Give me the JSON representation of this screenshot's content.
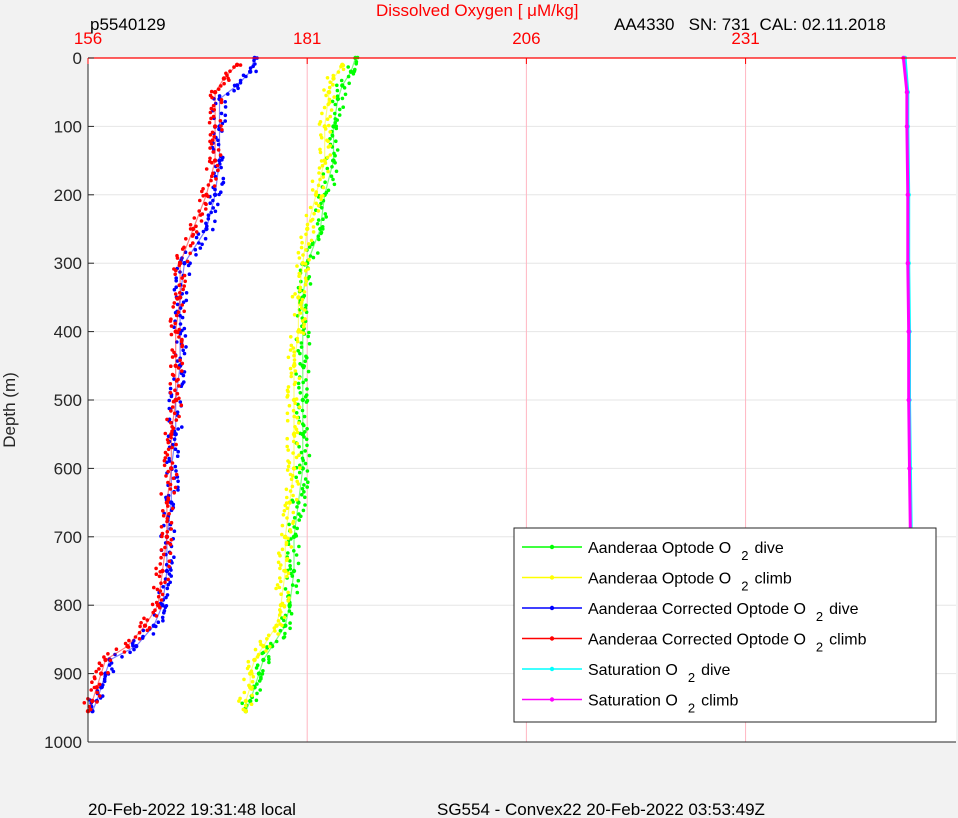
{
  "header": {
    "profile_id": "p5540129",
    "sensor_info": "AA4330   SN: 731  CAL: 02.11.2018"
  },
  "footer": {
    "local_time": "20-Feb-2022 19:31:48 local",
    "mission": "SG554 - Convex22 20-Feb-2022 03:53:49Z"
  },
  "colors": {
    "optode_dive": "#00ff00",
    "optode_climb": "#ffff00",
    "corrected_dive": "#0000ff",
    "corrected_climb": "#ff0000",
    "saturation_dive": "#00ffff",
    "saturation_climb": "#ff00ff",
    "top_axis": "#ff0000",
    "grid_vertical": "#ffb6c1",
    "grid_horizontal": "#e6e6e6"
  },
  "chart_data": {
    "type": "scatter",
    "title": "Dissolved Oxygen [ μM/kg]",
    "ylabel": "Depth (m)",
    "xlim": [
      156,
      255
    ],
    "ylim": [
      0,
      1000
    ],
    "y_reversed": true,
    "x_ticks": [
      "156",
      "181",
      "206",
      "231"
    ],
    "y_ticks": [
      "0",
      "100",
      "200",
      "300",
      "400",
      "500",
      "600",
      "700",
      "800",
      "900",
      "1000"
    ],
    "grid": true,
    "legend_position": "bottom-right",
    "series": [
      {
        "name": "Aanderaa Optode O 2 dive",
        "name_main": "Aanderaa Optode O",
        "name_sub": "2",
        "name_rest": "dive",
        "color_key": "optode_dive",
        "points": [
          [
            186.5,
            0
          ],
          [
            186,
            20
          ],
          [
            185,
            40
          ],
          [
            184.5,
            60
          ],
          [
            184,
            100
          ],
          [
            184,
            150
          ],
          [
            183,
            200
          ],
          [
            182.5,
            250
          ],
          [
            181,
            300
          ],
          [
            180.5,
            350
          ],
          [
            180.5,
            400
          ],
          [
            180.5,
            450
          ],
          [
            180.5,
            500
          ],
          [
            180.5,
            550
          ],
          [
            180.5,
            600
          ],
          [
            180,
            650
          ],
          [
            179.5,
            700
          ],
          [
            179.5,
            750
          ],
          [
            179,
            800
          ],
          [
            178.5,
            830
          ],
          [
            177,
            860
          ],
          [
            176,
            880
          ],
          [
            175.5,
            900
          ],
          [
            175,
            920
          ],
          [
            174.5,
            940
          ],
          [
            174,
            955
          ]
        ]
      },
      {
        "name": "Aanderaa Optode O 2 climb",
        "name_main": "Aanderaa Optode O",
        "name_sub": "2",
        "name_rest": "climb",
        "color_key": "optode_climb",
        "points": [
          [
            185,
            10
          ],
          [
            184,
            30
          ],
          [
            183.5,
            50
          ],
          [
            183,
            100
          ],
          [
            183,
            150
          ],
          [
            182,
            200
          ],
          [
            181,
            250
          ],
          [
            180.5,
            300
          ],
          [
            180,
            350
          ],
          [
            180,
            400
          ],
          [
            179.5,
            450
          ],
          [
            179.5,
            500
          ],
          [
            179.5,
            550
          ],
          [
            179.5,
            600
          ],
          [
            179,
            650
          ],
          [
            178.5,
            700
          ],
          [
            178.5,
            750
          ],
          [
            178,
            800
          ],
          [
            177.5,
            830
          ],
          [
            176,
            860
          ],
          [
            175,
            880
          ],
          [
            174.5,
            900
          ],
          [
            174.5,
            920
          ],
          [
            174,
            940
          ],
          [
            174,
            955
          ]
        ]
      },
      {
        "name": "Aanderaa Corrected Optode O 2 dive",
        "name_main": "Aanderaa Corrected Optode O",
        "name_sub": "2",
        "name_rest": "dive",
        "color_key": "corrected_dive",
        "points": [
          [
            175,
            0
          ],
          [
            174.5,
            20
          ],
          [
            173,
            40
          ],
          [
            171,
            60
          ],
          [
            171,
            100
          ],
          [
            171,
            150
          ],
          [
            170.5,
            200
          ],
          [
            169.5,
            250
          ],
          [
            167,
            300
          ],
          [
            166.5,
            350
          ],
          [
            166.5,
            400
          ],
          [
            166.5,
            450
          ],
          [
            166,
            500
          ],
          [
            166,
            550
          ],
          [
            165.5,
            600
          ],
          [
            165.5,
            650
          ],
          [
            165,
            700
          ],
          [
            165,
            750
          ],
          [
            164.5,
            800
          ],
          [
            163.5,
            830
          ],
          [
            161.5,
            860
          ],
          [
            158.5,
            880
          ],
          [
            158,
            900
          ],
          [
            157.5,
            920
          ],
          [
            157,
            940
          ],
          [
            156.5,
            955
          ]
        ]
      },
      {
        "name": "Aanderaa Corrected Optode O 2 climb",
        "name_main": "Aanderaa Corrected Optode O",
        "name_sub": "2",
        "name_rest": "climb",
        "color_key": "corrected_climb",
        "points": [
          [
            173,
            10
          ],
          [
            171.5,
            30
          ],
          [
            170.5,
            50
          ],
          [
            170.5,
            100
          ],
          [
            170.5,
            150
          ],
          [
            169.5,
            200
          ],
          [
            168,
            250
          ],
          [
            166.5,
            300
          ],
          [
            166.5,
            350
          ],
          [
            166,
            400
          ],
          [
            166,
            450
          ],
          [
            166,
            500
          ],
          [
            165.5,
            550
          ],
          [
            165.5,
            600
          ],
          [
            165,
            650
          ],
          [
            165,
            700
          ],
          [
            164.5,
            750
          ],
          [
            164,
            800
          ],
          [
            162.5,
            830
          ],
          [
            160.5,
            860
          ],
          [
            158,
            880
          ],
          [
            157.5,
            900
          ],
          [
            157,
            920
          ],
          [
            156.5,
            940
          ],
          [
            156,
            955
          ]
        ]
      },
      {
        "name": "Saturation O 2 dive",
        "name_main": "Saturation O",
        "name_sub": "2",
        "name_rest": "dive",
        "color_key": "saturation_dive",
        "points": [
          [
            249.2,
            0
          ],
          [
            249.5,
            50
          ],
          [
            249.5,
            100
          ],
          [
            249.6,
            200
          ],
          [
            249.6,
            300
          ],
          [
            249.7,
            400
          ],
          [
            249.7,
            500
          ],
          [
            249.8,
            600
          ],
          [
            249.9,
            700
          ],
          [
            250,
            780
          ],
          [
            250.1,
            830
          ],
          [
            250.3,
            850
          ],
          [
            250.8,
            870
          ],
          [
            251.5,
            890
          ],
          [
            251.6,
            910
          ],
          [
            252,
            930
          ],
          [
            252.3,
            955
          ]
        ]
      },
      {
        "name": "Saturation O 2 climb",
        "name_main": "Saturation O",
        "name_sub": "2",
        "name_rest": "climb",
        "color_key": "saturation_climb",
        "points": [
          [
            249,
            0
          ],
          [
            249.4,
            50
          ],
          [
            249.4,
            100
          ],
          [
            249.5,
            200
          ],
          [
            249.5,
            300
          ],
          [
            249.6,
            400
          ],
          [
            249.6,
            500
          ],
          [
            249.7,
            600
          ],
          [
            249.8,
            700
          ],
          [
            249.9,
            780
          ],
          [
            250,
            830
          ],
          [
            250.2,
            850
          ],
          [
            250.6,
            870
          ],
          [
            251.2,
            890
          ],
          [
            251.4,
            910
          ],
          [
            251.8,
            930
          ],
          [
            252.2,
            955
          ]
        ]
      }
    ]
  }
}
